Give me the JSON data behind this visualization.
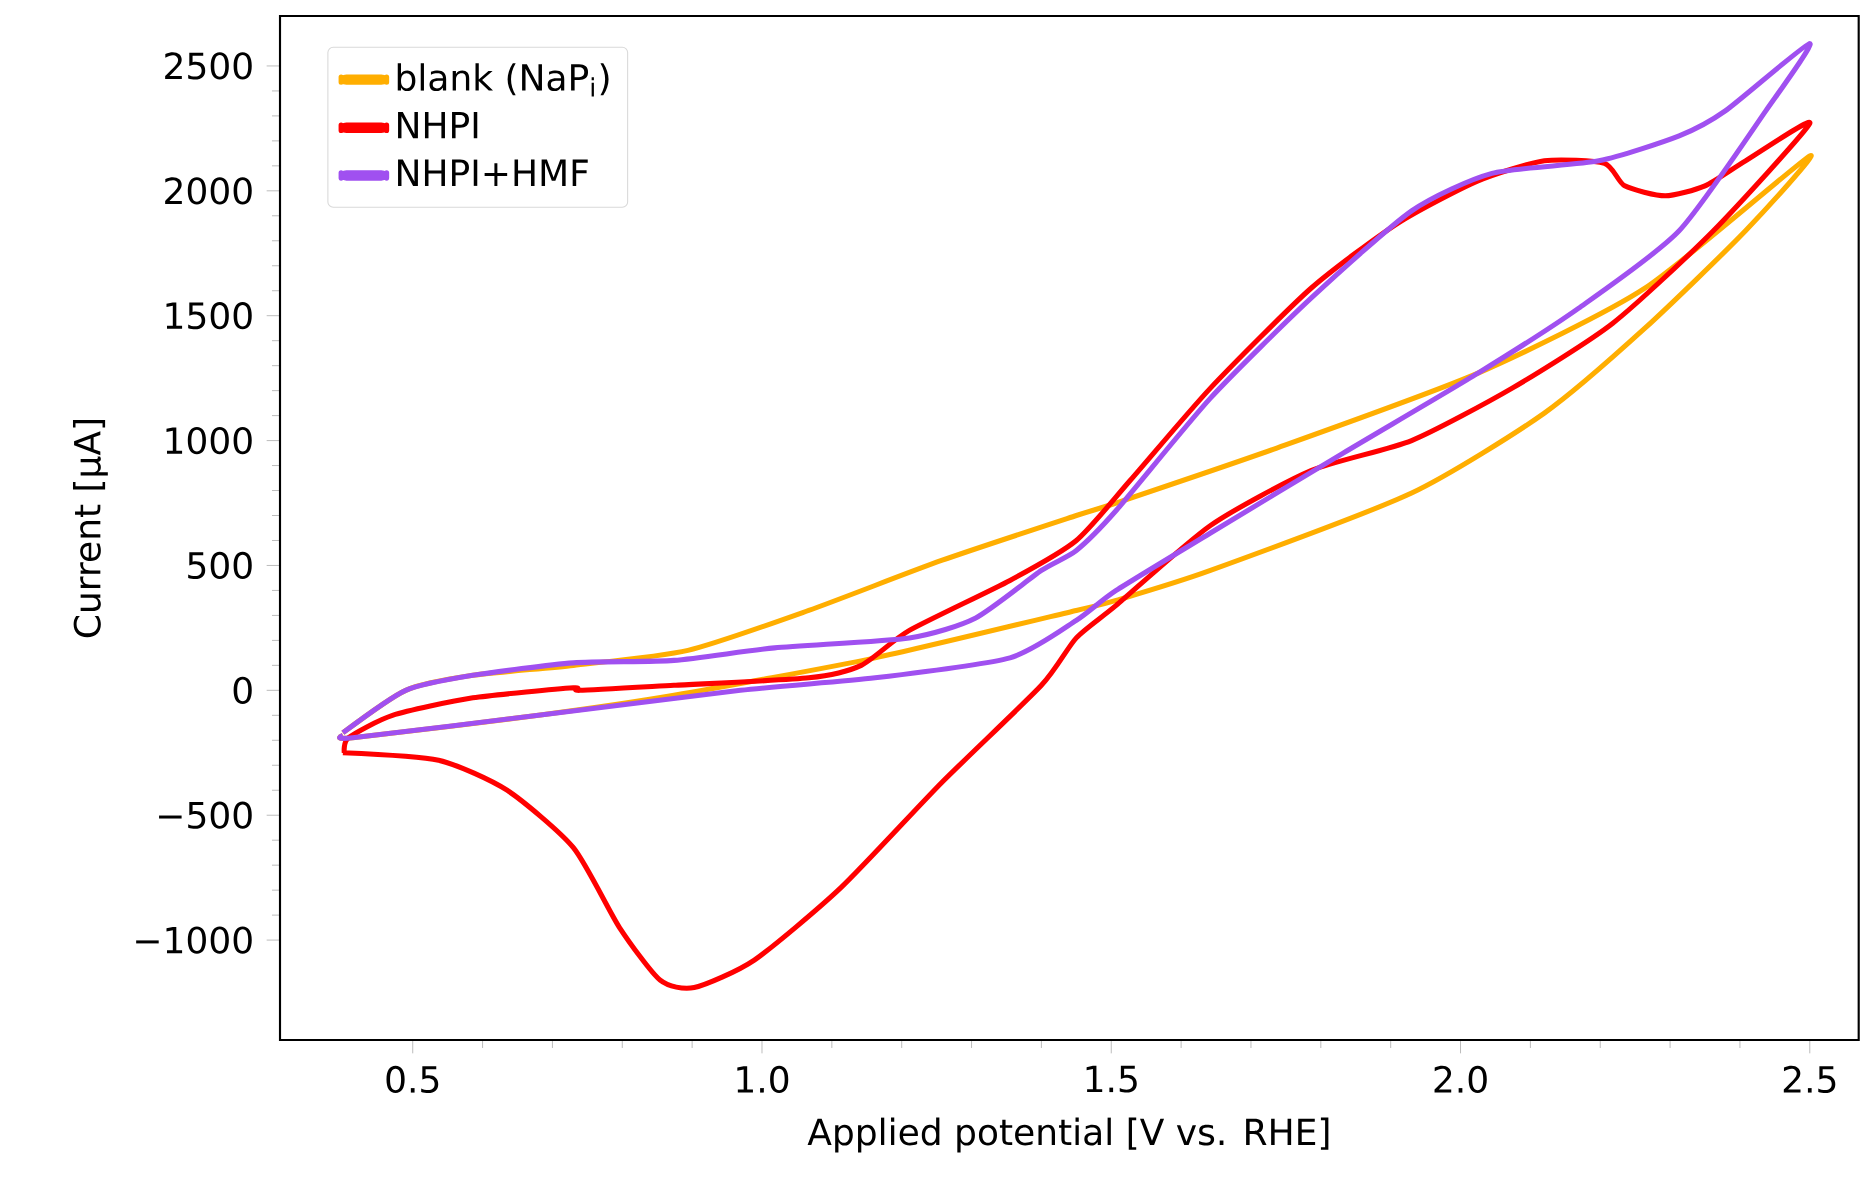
{
  "chart_data": {
    "type": "line",
    "xlabel": "Applied potential [V vs. RHE]",
    "ylabel": "Current [µA]",
    "xlim": [
      0.31,
      2.57
    ],
    "ylim": [
      -1400,
      2700
    ],
    "xticks": [
      {
        "value": 0.5,
        "label": "0.5"
      },
      {
        "value": 1.0,
        "label": "1.0"
      },
      {
        "value": 1.5,
        "label": "1.5"
      },
      {
        "value": 2.0,
        "label": "2.0"
      },
      {
        "value": 2.5,
        "label": "2.5"
      }
    ],
    "yticks": [
      {
        "value": -1000,
        "label": "−1000"
      },
      {
        "value": -500,
        "label": "−500"
      },
      0,
      500,
      1000,
      1500,
      2000,
      2500
    ],
    "legend": "top left",
    "grid": false,
    "series": [
      {
        "name": "blank (NaP$_{i}$)",
        "color": "#ffae00",
        "x": [
          0.4,
          0.49,
          0.586,
          0.73,
          0.894,
          1.067,
          1.257,
          1.45,
          1.507,
          1.737,
          2.025,
          2.264,
          2.5,
          2.408,
          2.264,
          2.12,
          1.93,
          1.642,
          1.507,
          1.45,
          1.162,
          0.874,
          0.68,
          0.414,
          0.4
        ],
        "values": [
          -170,
          0,
          60,
          100,
          160,
          320,
          520,
          700,
          750,
          970,
          1270,
          1610,
          2140,
          1840,
          1450,
          1110,
          790,
          480,
          360,
          320,
          130,
          -20,
          -100,
          -190,
          -180
        ]
      },
      {
        "name": "NHPI",
        "color": "#ff0000",
        "x": [
          0.4,
          0.537,
          0.635,
          0.73,
          0.796,
          0.854,
          0.903,
          0.989,
          1.113,
          1.257,
          1.4,
          1.45,
          1.507,
          1.642,
          1.786,
          1.93,
          2.074,
          2.218,
          2.362,
          2.5,
          2.408,
          2.35,
          2.293,
          2.235,
          2.206,
          2.12,
          2.025,
          1.91,
          1.786,
          1.642,
          1.527,
          1.45,
          1.355,
          1.211,
          1.142,
          1.067,
          0.874,
          0.739,
          0.73,
          0.586,
          0.471,
          0.408,
          0.402
        ],
        "values": [
          -250,
          -280,
          -400,
          -630,
          -950,
          -1160,
          -1190,
          -1080,
          -790,
          -370,
          20,
          210,
          340,
          660,
          880,
          1000,
          1210,
          1470,
          1840,
          2270,
          2120,
          2020,
          1980,
          2020,
          2110,
          2120,
          2040,
          1870,
          1610,
          1210,
          840,
          600,
          440,
          240,
          100,
          50,
          20,
          0,
          10,
          -30,
          -100,
          -190,
          -250
        ]
      },
      {
        "name": "NHPI+HMF",
        "color": "#a050f0",
        "x": [
          0.4,
          0.49,
          0.586,
          0.73,
          0.874,
          1.018,
          1.211,
          1.306,
          1.4,
          1.45,
          1.507,
          1.642,
          1.786,
          1.93,
          2.045,
          2.198,
          2.313,
          2.379,
          2.5,
          2.437,
          2.313,
          2.169,
          2.025,
          1.832,
          1.642,
          1.507,
          1.45,
          1.355,
          1.162,
          0.969,
          0.68,
          0.414,
          0.4
        ],
        "values": [
          -170,
          0,
          60,
          110,
          120,
          170,
          210,
          290,
          480,
          560,
          720,
          1170,
          1570,
          1920,
          2070,
          2120,
          2220,
          2320,
          2590,
          2320,
          1840,
          1530,
          1270,
          950,
          630,
          400,
          280,
          130,
          50,
          0,
          -100,
          -190,
          -180
        ]
      }
    ]
  }
}
